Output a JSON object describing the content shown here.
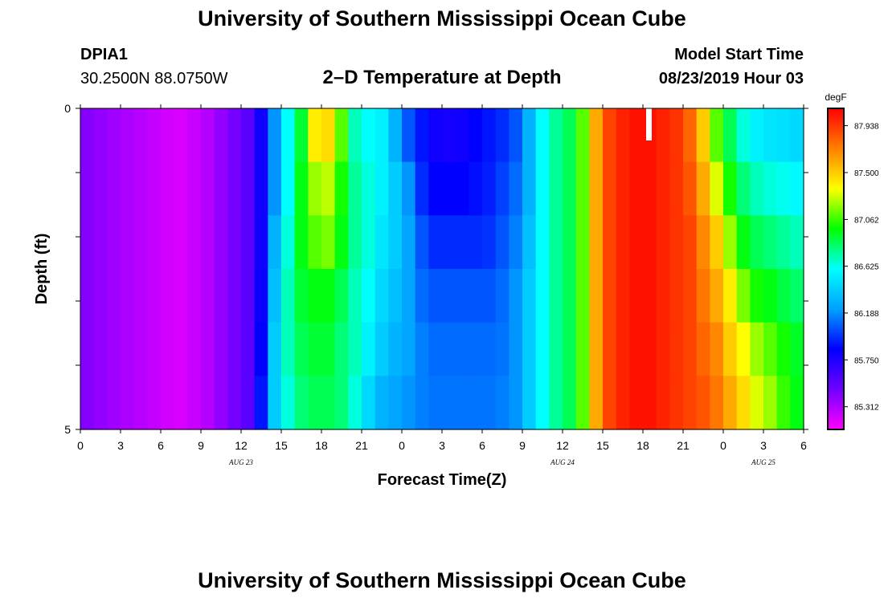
{
  "header": {
    "title_top": "University of Southern Mississippi Ocean Cube",
    "title_bottom": "University of Southern Mississippi Ocean Cube",
    "station_id": "DPIA1",
    "coordinates": "30.2500N 88.0750W",
    "plot_title": "2–D Temperature at Depth",
    "model_start_label": "Model Start Time",
    "model_start_value": "08/23/2019 Hour 03"
  },
  "chart_data": {
    "type": "heatmap",
    "title": "2–D Temperature at Depth",
    "xlabel": "Forecast Time(Z)",
    "ylabel": "Depth (ft)",
    "x_tick_labels": [
      "0",
      "3",
      "6",
      "9",
      "12",
      "15",
      "18",
      "21",
      "0",
      "3",
      "6",
      "9",
      "12",
      "15",
      "18",
      "21",
      "0",
      "3",
      "6"
    ],
    "x_date_labels": [
      {
        "label": "AUG 23",
        "hour_index": 12
      },
      {
        "label": "AUG 24",
        "hour_index": 36
      },
      {
        "label": "AUG 25",
        "hour_index": 51
      }
    ],
    "y_tick_labels": [
      "0",
      "5"
    ],
    "ylim": [
      0,
      5
    ],
    "xlim_hours": [
      0,
      54
    ],
    "depths_ft": [
      0,
      1,
      2,
      3,
      4,
      5
    ],
    "colorbar": {
      "unit": "degF",
      "labels": [
        "87.938",
        "87.500",
        "87.062",
        "86.625",
        "86.188",
        "85.750",
        "85.312"
      ],
      "vmin": 85.1,
      "vmax": 88.1
    },
    "colormap": [
      "#ff00ff",
      "#7000ff",
      "#0000ff",
      "#00a0ff",
      "#00ffff",
      "#00ff00",
      "#ffff00",
      "#ff8000",
      "#ff0000"
    ],
    "columns": [
      {
        "h": 0,
        "v": [
          85.42,
          85.42,
          85.42,
          85.42,
          85.42,
          85.42
        ]
      },
      {
        "h": 1,
        "v": [
          85.38,
          85.38,
          85.38,
          85.38,
          85.38,
          85.38
        ]
      },
      {
        "h": 2,
        "v": [
          85.35,
          85.35,
          85.35,
          85.35,
          85.35,
          85.35
        ]
      },
      {
        "h": 3,
        "v": [
          85.32,
          85.32,
          85.32,
          85.32,
          85.32,
          85.32
        ]
      },
      {
        "h": 4,
        "v": [
          85.29,
          85.29,
          85.29,
          85.29,
          85.29,
          85.29
        ]
      },
      {
        "h": 5,
        "v": [
          85.25,
          85.25,
          85.25,
          85.25,
          85.25,
          85.25
        ]
      },
      {
        "h": 6,
        "v": [
          85.22,
          85.22,
          85.22,
          85.22,
          85.22,
          85.22
        ]
      },
      {
        "h": 7,
        "v": [
          85.2,
          85.2,
          85.2,
          85.2,
          85.2,
          85.2
        ]
      },
      {
        "h": 8,
        "v": [
          85.24,
          85.24,
          85.24,
          85.24,
          85.24,
          85.24
        ]
      },
      {
        "h": 9,
        "v": [
          85.3,
          85.3,
          85.3,
          85.3,
          85.3,
          85.3
        ]
      },
      {
        "h": 10,
        "v": [
          85.38,
          85.38,
          85.38,
          85.38,
          85.38,
          85.38
        ]
      },
      {
        "h": 11,
        "v": [
          85.46,
          85.46,
          85.46,
          85.46,
          85.46,
          85.46
        ]
      },
      {
        "h": 12,
        "v": [
          85.55,
          85.55,
          85.55,
          85.55,
          85.55,
          85.55
        ]
      },
      {
        "h": 13,
        "v": [
          85.8,
          85.8,
          85.8,
          85.82,
          85.85,
          85.9
        ]
      },
      {
        "h": 14,
        "v": [
          86.2,
          86.2,
          86.3,
          86.35,
          86.4,
          86.4
        ]
      },
      {
        "h": 15,
        "v": [
          86.6,
          86.6,
          86.65,
          86.7,
          86.7,
          86.65
        ]
      },
      {
        "h": 16,
        "v": [
          86.9,
          86.95,
          86.95,
          86.9,
          86.85,
          86.8
        ]
      },
      {
        "h": 17,
        "v": [
          87.4,
          87.2,
          87.1,
          86.95,
          86.9,
          86.85
        ]
      },
      {
        "h": 18,
        "v": [
          87.45,
          87.25,
          87.15,
          86.95,
          86.9,
          86.85
        ]
      },
      {
        "h": 19,
        "v": [
          87.1,
          87.0,
          86.95,
          86.85,
          86.8,
          86.8
        ]
      },
      {
        "h": 20,
        "v": [
          86.7,
          86.75,
          86.75,
          86.7,
          86.7,
          86.65
        ]
      },
      {
        "h": 21,
        "v": [
          86.6,
          86.65,
          86.65,
          86.6,
          86.55,
          86.45
        ]
      },
      {
        "h": 22,
        "v": [
          86.55,
          86.55,
          86.5,
          86.45,
          86.4,
          86.3
        ]
      },
      {
        "h": 23,
        "v": [
          86.3,
          86.4,
          86.4,
          86.35,
          86.3,
          86.25
        ]
      },
      {
        "h": 24,
        "v": [
          86.05,
          86.2,
          86.25,
          86.25,
          86.25,
          86.2
        ]
      },
      {
        "h": 25,
        "v": [
          85.9,
          85.95,
          86.05,
          86.1,
          86.15,
          86.15
        ]
      },
      {
        "h": 26,
        "v": [
          85.8,
          85.85,
          85.95,
          86.05,
          86.1,
          86.12
        ]
      },
      {
        "h": 27,
        "v": [
          85.78,
          85.85,
          85.95,
          86.05,
          86.1,
          86.12
        ]
      },
      {
        "h": 28,
        "v": [
          85.8,
          85.85,
          85.95,
          86.05,
          86.1,
          86.12
        ]
      },
      {
        "h": 29,
        "v": [
          85.85,
          85.88,
          85.95,
          86.05,
          86.1,
          86.12
        ]
      },
      {
        "h": 30,
        "v": [
          85.9,
          85.92,
          85.97,
          86.05,
          86.1,
          86.12
        ]
      },
      {
        "h": 31,
        "v": [
          85.95,
          86.0,
          86.05,
          86.1,
          86.12,
          86.15
        ]
      },
      {
        "h": 32,
        "v": [
          86.05,
          86.1,
          86.15,
          86.2,
          86.2,
          86.2
        ]
      },
      {
        "h": 33,
        "v": [
          86.3,
          86.3,
          86.35,
          86.4,
          86.4,
          86.4
        ]
      },
      {
        "h": 34,
        "v": [
          86.6,
          86.6,
          86.6,
          86.6,
          86.6,
          86.6
        ]
      },
      {
        "h": 35,
        "v": [
          86.75,
          86.75,
          86.75,
          86.75,
          86.75,
          86.75
        ]
      },
      {
        "h": 36,
        "v": [
          86.85,
          86.85,
          86.85,
          86.85,
          86.85,
          86.85
        ]
      },
      {
        "h": 37,
        "v": [
          87.1,
          87.1,
          87.1,
          87.1,
          87.1,
          87.1
        ]
      },
      {
        "h": 38,
        "v": [
          87.6,
          87.6,
          87.6,
          87.6,
          87.6,
          87.6
        ]
      },
      {
        "h": 39,
        "v": [
          87.9,
          87.9,
          87.9,
          87.9,
          87.9,
          87.9
        ]
      },
      {
        "h": 40,
        "v": [
          88.0,
          88.0,
          88.0,
          88.0,
          88.0,
          88.0
        ]
      },
      {
        "h": 41,
        "v": [
          88.05,
          88.05,
          88.05,
          88.05,
          88.05,
          88.05
        ]
      },
      {
        "h": 42,
        "v": [
          88.05,
          88.05,
          88.05,
          88.05,
          88.05,
          88.05
        ]
      },
      {
        "h": 43,
        "v": [
          88.0,
          88.0,
          88.0,
          88.0,
          88.0,
          88.0
        ]
      },
      {
        "h": 44,
        "v": [
          87.95,
          87.95,
          87.95,
          87.95,
          87.95,
          87.95
        ]
      },
      {
        "h": 45,
        "v": [
          87.8,
          87.85,
          87.9,
          87.9,
          87.9,
          87.9
        ]
      },
      {
        "h": 46,
        "v": [
          87.5,
          87.6,
          87.7,
          87.75,
          87.8,
          87.85
        ]
      },
      {
        "h": 47,
        "v": [
          87.1,
          87.3,
          87.5,
          87.6,
          87.7,
          87.75
        ]
      },
      {
        "h": 48,
        "v": [
          86.85,
          87.0,
          87.2,
          87.4,
          87.5,
          87.6
        ]
      },
      {
        "h": 49,
        "v": [
          86.65,
          86.8,
          86.95,
          87.15,
          87.35,
          87.45
        ]
      },
      {
        "h": 50,
        "v": [
          86.55,
          86.7,
          86.85,
          87.0,
          87.2,
          87.3
        ]
      },
      {
        "h": 51,
        "v": [
          86.5,
          86.65,
          86.8,
          86.95,
          87.1,
          87.2
        ]
      },
      {
        "h": 52,
        "v": [
          86.48,
          86.62,
          86.75,
          86.88,
          87.0,
          87.05
        ]
      },
      {
        "h": 53,
        "v": [
          86.45,
          86.58,
          86.7,
          86.82,
          86.92,
          86.95
        ]
      }
    ]
  }
}
